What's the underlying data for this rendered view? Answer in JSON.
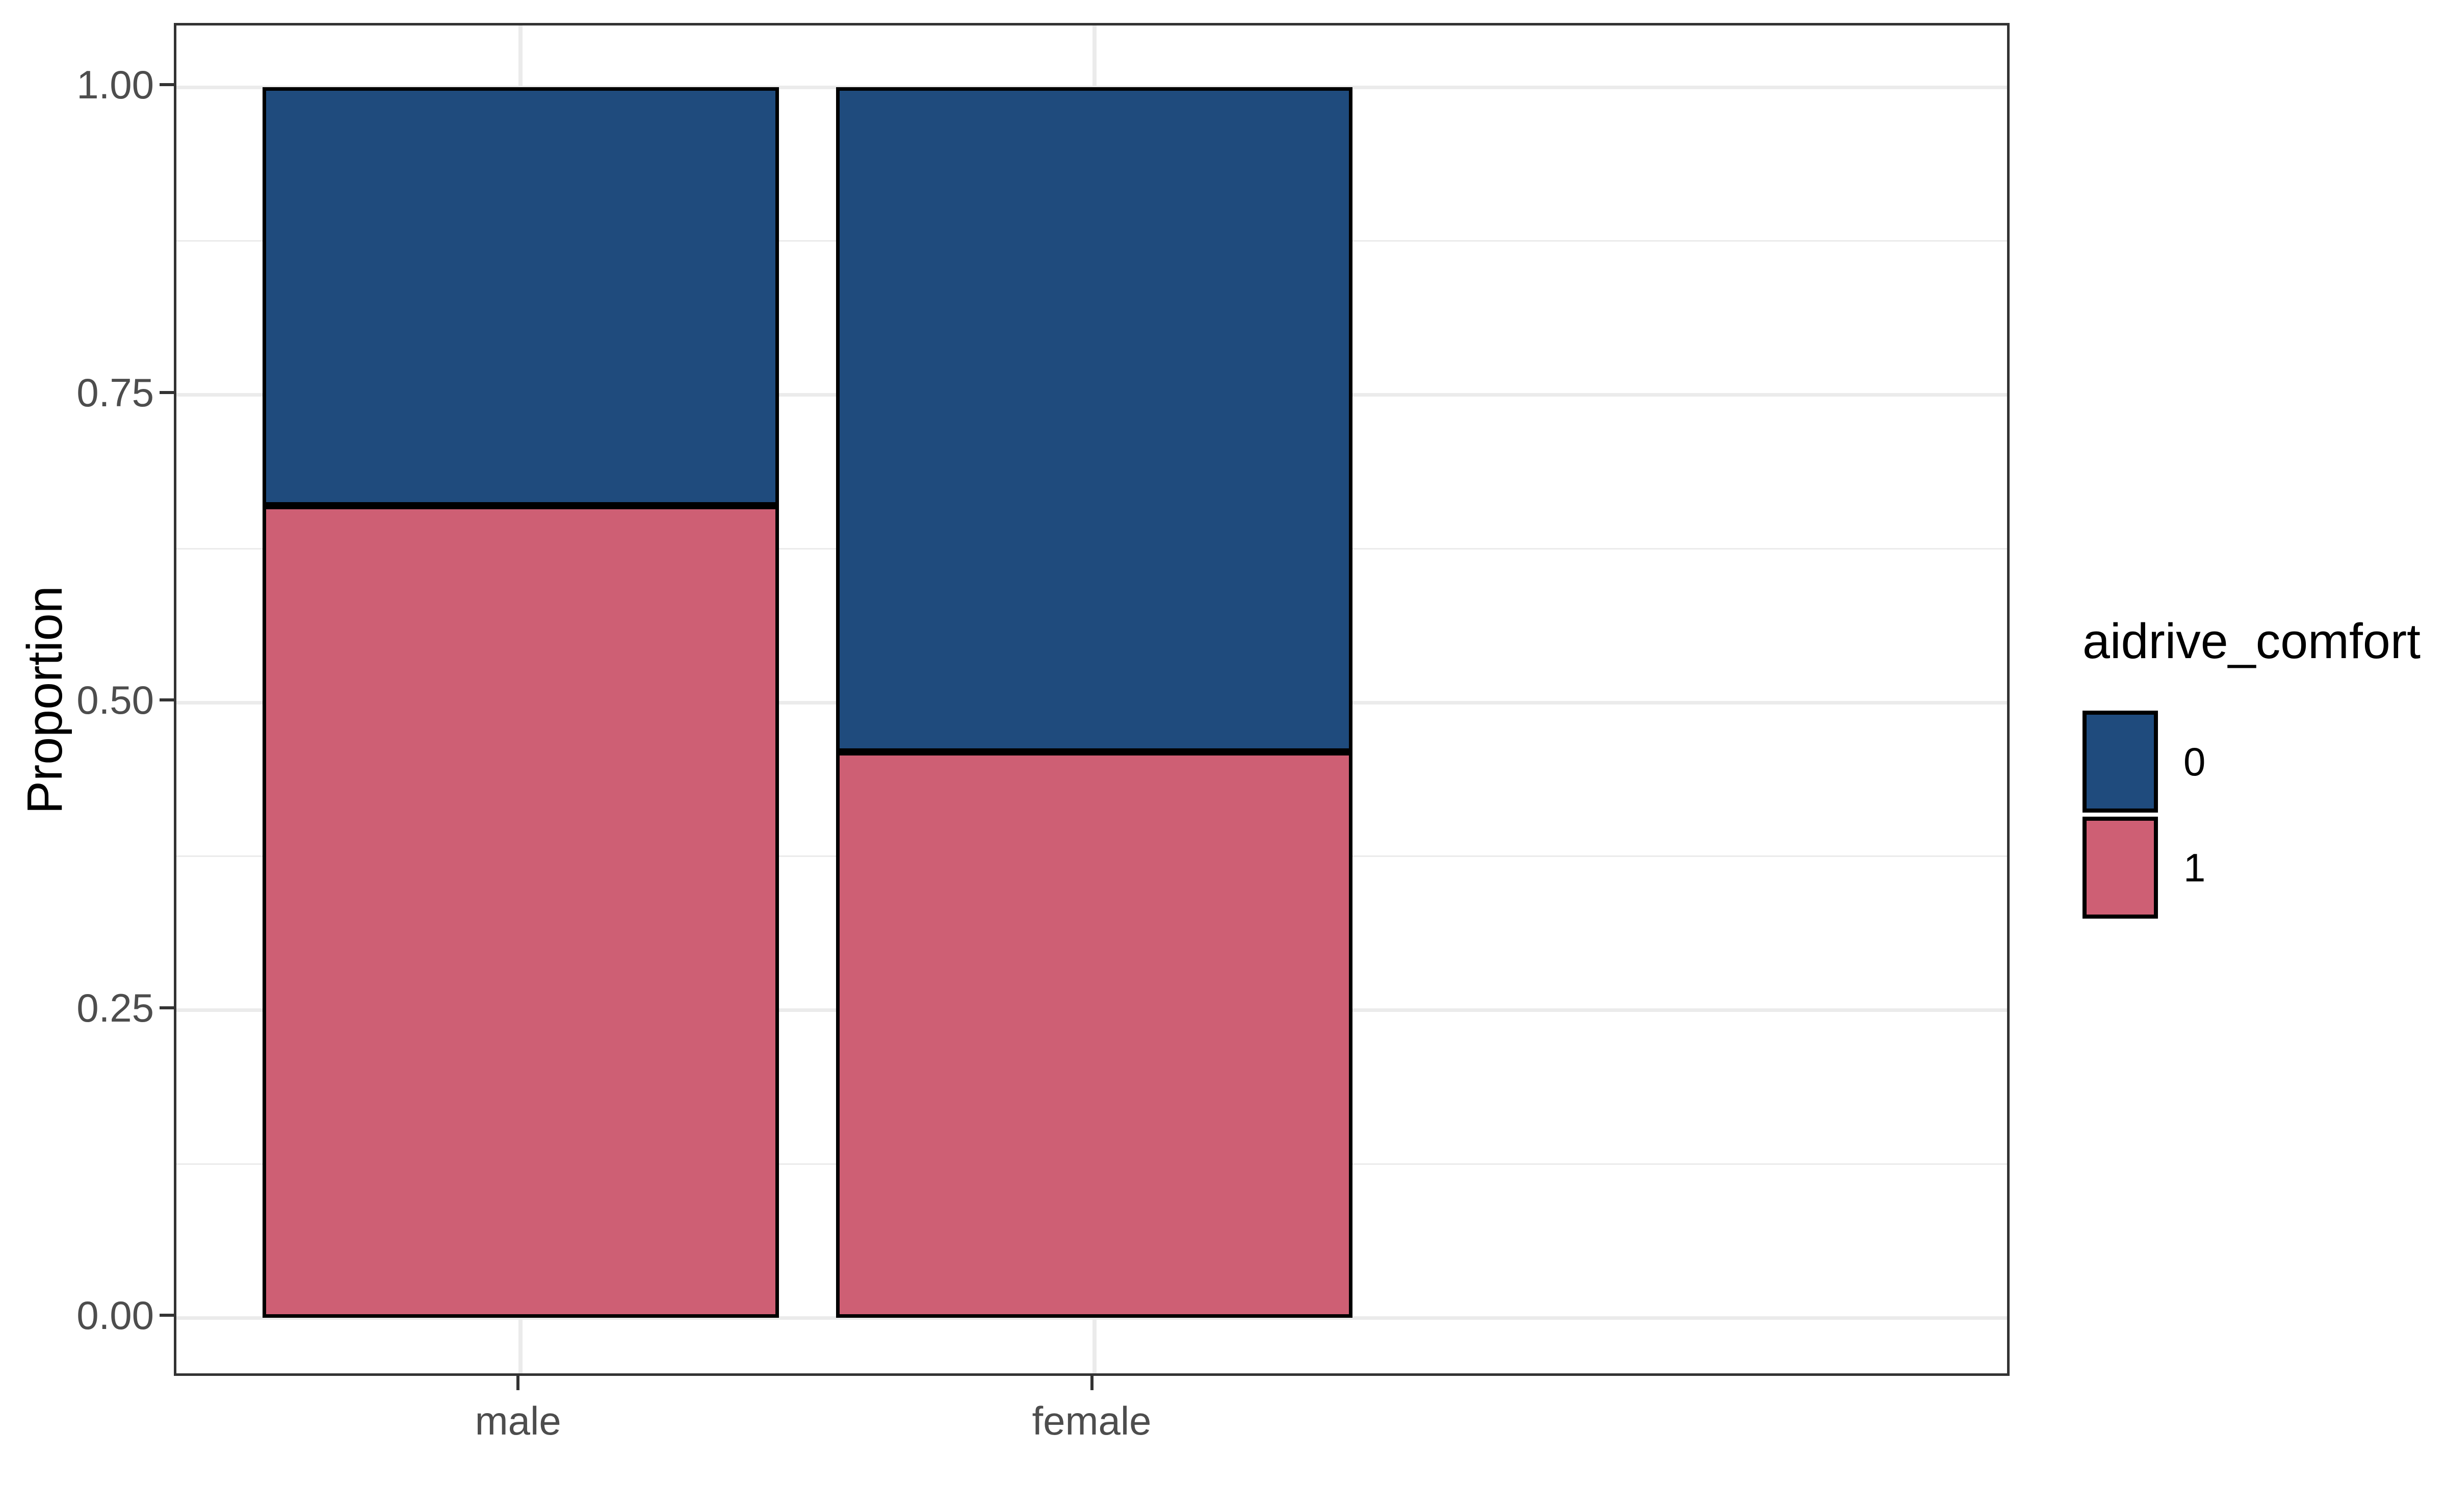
{
  "figure": {
    "background": "#FFFFFF"
  },
  "axes": {
    "y": {
      "title": "Proportion",
      "ticks": [
        {
          "label": "1.00",
          "value": 1.0
        },
        {
          "label": "0.75",
          "value": 0.75
        },
        {
          "label": "0.50",
          "value": 0.5
        },
        {
          "label": "0.25",
          "value": 0.25
        },
        {
          "label": "0.00",
          "value": 0.0
        }
      ],
      "minor_tick_values": [
        0.875,
        0.625,
        0.375,
        0.125
      ],
      "range": [
        0,
        1
      ]
    },
    "x": {
      "categories": [
        "male",
        "female"
      ]
    }
  },
  "legend": {
    "title": "aidrive_comfort",
    "entries": [
      {
        "label": "0",
        "color": "#1F4B7D"
      },
      {
        "label": "1",
        "color": "#CE5F74"
      }
    ]
  },
  "colors": {
    "fill_0": "#1F4B7D",
    "fill_1": "#CE5F74",
    "bar_outline": "#000000",
    "gridline": "#EBEBEB",
    "panel_border": "#333333",
    "tick_mark": "#333333",
    "tick_label": "#4D4D4D",
    "axis_title": "#000000"
  },
  "chart_data": {
    "type": "bar",
    "subtype": "stacked_proportion",
    "orientation": "vertical",
    "categories": [
      "male",
      "female"
    ],
    "series": [
      {
        "name": "0",
        "color": "#1F4B7D",
        "values": [
          0.34,
          0.54
        ],
        "stack_position": "top"
      },
      {
        "name": "1",
        "color": "#CE5F74",
        "values": [
          0.66,
          0.46
        ],
        "stack_position": "bottom"
      }
    ],
    "title": "",
    "xlabel": "",
    "ylabel": "Proportion",
    "ylim": [
      0,
      1
    ],
    "bar_width_fraction": 0.9,
    "grid": {
      "major": true,
      "minor": true
    },
    "legend_position": "right",
    "legend_title": "aidrive_comfort"
  }
}
